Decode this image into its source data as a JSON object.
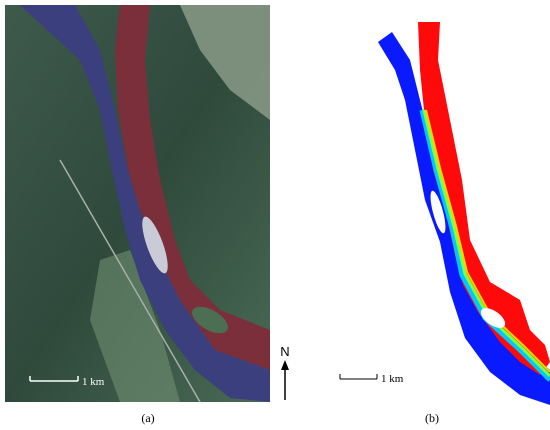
{
  "panels": [
    {
      "scale_label": "1 km",
      "caption": "(a)"
    },
    {
      "scale_label": "1 km",
      "caption": "(b)"
    }
  ],
  "north_label": "N"
}
